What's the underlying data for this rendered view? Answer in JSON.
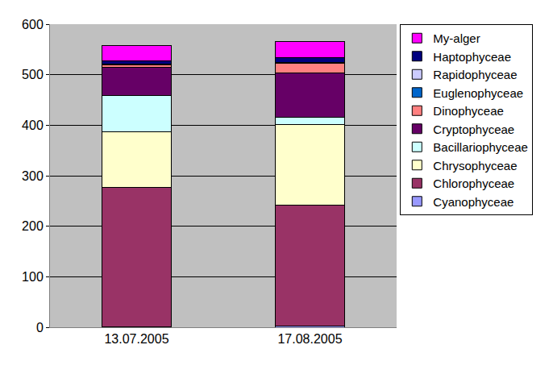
{
  "chart_data": {
    "type": "bar",
    "stacked": true,
    "grid": true,
    "legend": "right",
    "categories": [
      "13.07.2005",
      "17.08.2005"
    ],
    "ylim": [
      0,
      600
    ],
    "yticks": [
      0,
      100,
      200,
      300,
      400,
      500,
      600
    ],
    "series": [
      {
        "name": "Cyanophyceae",
        "color": "#9999FF",
        "values": [
          1,
          2
        ]
      },
      {
        "name": "Chlorophyceae",
        "color": "#993366",
        "values": [
          276,
          239
        ]
      },
      {
        "name": "Chrysophyceae",
        "color": "#FFFFCC",
        "values": [
          110,
          161
        ]
      },
      {
        "name": "Bacillariophyceae",
        "color": "#CCFFFF",
        "values": [
          72,
          14
        ]
      },
      {
        "name": "Cryptophyceae",
        "color": "#660066",
        "values": [
          56,
          88
        ]
      },
      {
        "name": "Dinophyceae",
        "color": "#FF8080",
        "values": [
          5,
          19
        ]
      },
      {
        "name": "Euglenophyceae",
        "color": "#0066CC",
        "values": [
          1,
          1
        ]
      },
      {
        "name": "Rapidophyceae",
        "color": "#CCCCFF",
        "values": [
          0,
          1
        ]
      },
      {
        "name": "Haptophyceae",
        "color": "#000080",
        "values": [
          7,
          8
        ]
      },
      {
        "name": "My-alger",
        "color": "#FF00FF",
        "values": [
          30,
          33
        ]
      }
    ]
  }
}
